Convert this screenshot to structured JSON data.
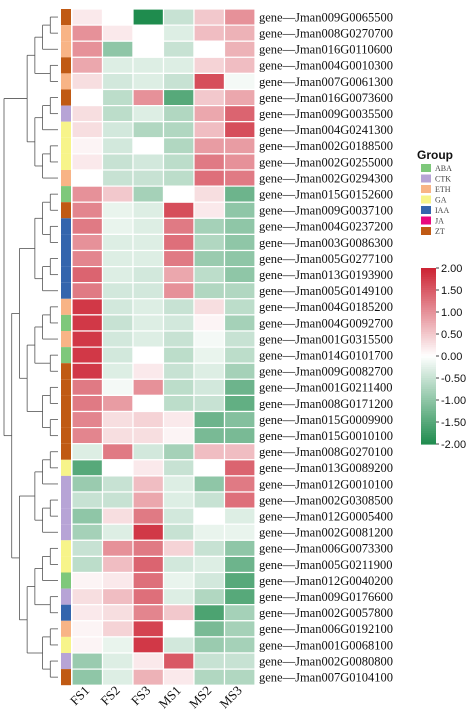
{
  "chart_data": {
    "type": "heatmap",
    "columns": [
      "FS1",
      "FS2",
      "FS3",
      "MS1",
      "MS2",
      "MS3"
    ],
    "rows": [
      {
        "gene": "gene—Jman009G0065500",
        "group": "ZT",
        "values": [
          0.2,
          0.0,
          -2.0,
          -0.5,
          0.5,
          1.0
        ]
      },
      {
        "gene": "gene—Jman008G0270700",
        "group": "ETH",
        "values": [
          1.0,
          0.2,
          0.0,
          -0.3,
          0.6,
          0.7
        ]
      },
      {
        "gene": "gene—Jman016G0110600",
        "group": "ETH",
        "values": [
          1.0,
          -1.0,
          0.0,
          -0.5,
          0.0,
          0.7
        ]
      },
      {
        "gene": "gene—Jman004G0010300",
        "group": "ZT",
        "values": [
          0.8,
          -0.3,
          -0.3,
          -0.3,
          0.4,
          0.6
        ]
      },
      {
        "gene": "gene—Jman007G0061300",
        "group": "ETH",
        "values": [
          0.3,
          -0.4,
          -0.3,
          -0.5,
          1.6,
          -0.1
        ]
      },
      {
        "gene": "gene—Jman016G0073600",
        "group": "ZT",
        "values": [
          0.0,
          -0.6,
          1.0,
          -1.5,
          0.5,
          0.8
        ]
      },
      {
        "gene": "gene—Jman009G0035500",
        "group": "CTK",
        "values": [
          0.3,
          -0.6,
          -0.3,
          -0.7,
          0.8,
          1.4
        ]
      },
      {
        "gene": "gene—Jman004G0241300",
        "group": "GA",
        "values": [
          0.3,
          -0.4,
          -0.7,
          -0.7,
          0.6,
          1.6
        ]
      },
      {
        "gene": "gene—Jman002G0188500",
        "group": "GA",
        "values": [
          0.1,
          -0.4,
          0.0,
          -0.7,
          0.9,
          0.9
        ]
      },
      {
        "gene": "gene—Jman002G0255000",
        "group": "GA",
        "values": [
          0.2,
          -0.5,
          -0.4,
          -0.6,
          1.2,
          1.0
        ]
      },
      {
        "gene": "gene—Jman002G0294300",
        "group": "ETH",
        "values": [
          0.0,
          -0.5,
          -0.5,
          -0.6,
          1.3,
          1.2
        ]
      },
      {
        "gene": "gene—Jman015G0152600",
        "group": "ABA",
        "values": [
          1.0,
          0.5,
          -0.8,
          0.0,
          0.3,
          -1.3
        ]
      },
      {
        "gene": "gene—Jman009G0037100",
        "group": "ZT",
        "values": [
          1.1,
          -0.2,
          -0.3,
          1.6,
          0.2,
          -1.0
        ]
      },
      {
        "gene": "gene—Jman004G0237200",
        "group": "IAA",
        "values": [
          1.2,
          -0.2,
          -0.3,
          1.2,
          -0.8,
          -1.0
        ]
      },
      {
        "gene": "gene—Jman003G0086300",
        "group": "IAA",
        "values": [
          1.0,
          -0.3,
          -0.3,
          1.3,
          -0.7,
          -1.0
        ]
      },
      {
        "gene": "gene—Jman005G0277100",
        "group": "IAA",
        "values": [
          1.1,
          -0.3,
          -0.3,
          1.2,
          -0.9,
          -1.0
        ]
      },
      {
        "gene": "gene—Jman013G0193900",
        "group": "IAA",
        "values": [
          1.4,
          -0.3,
          -0.4,
          0.8,
          -0.6,
          -1.0
        ]
      },
      {
        "gene": "gene—Jman005G0149100",
        "group": "IAA",
        "values": [
          1.2,
          -0.4,
          -0.4,
          1.0,
          -0.7,
          -0.7
        ]
      },
      {
        "gene": "gene—Jman004G0185200",
        "group": "ETH",
        "values": [
          1.8,
          -0.4,
          -0.3,
          -0.5,
          0.3,
          -0.6
        ]
      },
      {
        "gene": "gene—Jman004G0092700",
        "group": "ABA",
        "values": [
          1.8,
          -0.5,
          -0.3,
          -0.4,
          0.1,
          -0.8
        ]
      },
      {
        "gene": "gene—Jman001G0315500",
        "group": "ETH",
        "values": [
          1.8,
          -0.4,
          -0.3,
          -0.5,
          -0.1,
          -0.5
        ]
      },
      {
        "gene": "gene—Jman014G0101700",
        "group": "ABA",
        "values": [
          1.8,
          -0.4,
          0.0,
          -0.6,
          -0.2,
          -0.6
        ]
      },
      {
        "gene": "gene—Jman009G0082700",
        "group": "ZT",
        "values": [
          1.8,
          -0.3,
          0.2,
          -0.5,
          -0.3,
          -0.8
        ]
      },
      {
        "gene": "gene—Jman001G0211400",
        "group": "ZT",
        "values": [
          1.2,
          -0.1,
          1.0,
          -0.6,
          -0.4,
          -1.3
        ]
      },
      {
        "gene": "gene—Jman008G0171200",
        "group": "ZT",
        "values": [
          1.2,
          0.9,
          0.0,
          -0.6,
          -0.5,
          -1.4
        ]
      },
      {
        "gene": "gene—Jman015G0009900",
        "group": "ZT",
        "values": [
          1.1,
          0.3,
          0.4,
          0.2,
          -1.3,
          -1.1
        ]
      },
      {
        "gene": "gene—Jman015G0010100",
        "group": "ZT",
        "values": [
          1.1,
          0.3,
          0.3,
          0.1,
          -1.2,
          -1.2
        ]
      },
      {
        "gene": "gene—Jman008G0270100",
        "group": "ZT",
        "values": [
          -0.3,
          1.2,
          -0.4,
          -0.8,
          0.6,
          0.6
        ]
      },
      {
        "gene": "gene—Jman013G0089200",
        "group": "GA",
        "values": [
          -1.5,
          0.0,
          0.2,
          -0.5,
          0.0,
          1.4
        ]
      },
      {
        "gene": "gene—Jman012G0010100",
        "group": "CTK",
        "values": [
          -0.9,
          -0.5,
          0.6,
          -0.3,
          -1.0,
          1.2
        ]
      },
      {
        "gene": "gene—Jman002G0308500",
        "group": "CTK",
        "values": [
          -0.5,
          -0.5,
          0.8,
          -0.3,
          -0.5,
          1.3
        ]
      },
      {
        "gene": "gene—Jman012G0005400",
        "group": "CTK",
        "values": [
          -1.0,
          0.3,
          1.2,
          -0.4,
          0.0,
          -0.3
        ]
      },
      {
        "gene": "gene—Jman002G0081200",
        "group": "CTK",
        "values": [
          -0.8,
          -0.3,
          1.8,
          -0.5,
          -0.2,
          -0.2
        ]
      },
      {
        "gene": "gene—Jman006G0073300",
        "group": "GA",
        "values": [
          -0.5,
          1.0,
          1.2,
          0.4,
          -0.5,
          -1.0
        ]
      },
      {
        "gene": "gene—Jman005G0211900",
        "group": "GA",
        "values": [
          -0.6,
          0.6,
          1.4,
          -0.4,
          -0.3,
          -1.3
        ]
      },
      {
        "gene": "gene—Jman012G0040200",
        "group": "ABA",
        "values": [
          0.1,
          0.2,
          1.3,
          -0.2,
          -0.4,
          -1.5
        ]
      },
      {
        "gene": "gene—Jman009G0176600",
        "group": "CTK",
        "values": [
          0.3,
          0.6,
          1.3,
          -0.3,
          -0.7,
          -1.5
        ]
      },
      {
        "gene": "gene—Jman002G0057800",
        "group": "IAA",
        "values": [
          0.2,
          0.3,
          1.1,
          0.5,
          -1.6,
          -0.8
        ]
      },
      {
        "gene": "gene—Jman006G0192100",
        "group": "ETH",
        "values": [
          0.1,
          0.4,
          1.7,
          0.0,
          -1.2,
          -0.8
        ]
      },
      {
        "gene": "gene—Jman001G0068100",
        "group": "GA",
        "values": [
          0.1,
          -0.2,
          1.8,
          -0.4,
          -0.9,
          -0.8
        ]
      },
      {
        "gene": "gene—Jman002G0080800",
        "group": "CTK",
        "values": [
          -0.9,
          -0.3,
          0.2,
          1.5,
          -0.5,
          -0.5
        ]
      },
      {
        "gene": "gene—Jman007G0104100",
        "group": "ZT",
        "values": [
          -1.0,
          -0.3,
          0.7,
          0.2,
          -0.7,
          -0.7
        ]
      }
    ],
    "legend": {
      "title": "Group",
      "placement": "right",
      "items": [
        {
          "label": "ABA",
          "color": "#7ec87b"
        },
        {
          "label": "CTK",
          "color": "#b7a4d6"
        },
        {
          "label": "ETH",
          "color": "#f8b486"
        },
        {
          "label": "GA",
          "color": "#f7f48a"
        },
        {
          "label": "IAA",
          "color": "#3465ad"
        },
        {
          "label": "JA",
          "color": "#e8087d"
        },
        {
          "label": "ZT",
          "color": "#c05a14"
        }
      ]
    },
    "colorbar": {
      "min": -2.0,
      "max": 2.0,
      "ticks": [
        "2.00",
        "1.50",
        "1.00",
        "0.50",
        "0.00",
        "-0.50",
        "-1.00",
        "-1.50",
        "-2.00"
      ],
      "colors": {
        "low": "#1f8c4e",
        "mid": "#ffffff",
        "high": "#cc2232"
      }
    },
    "dendrogram": "left",
    "grid": false
  }
}
